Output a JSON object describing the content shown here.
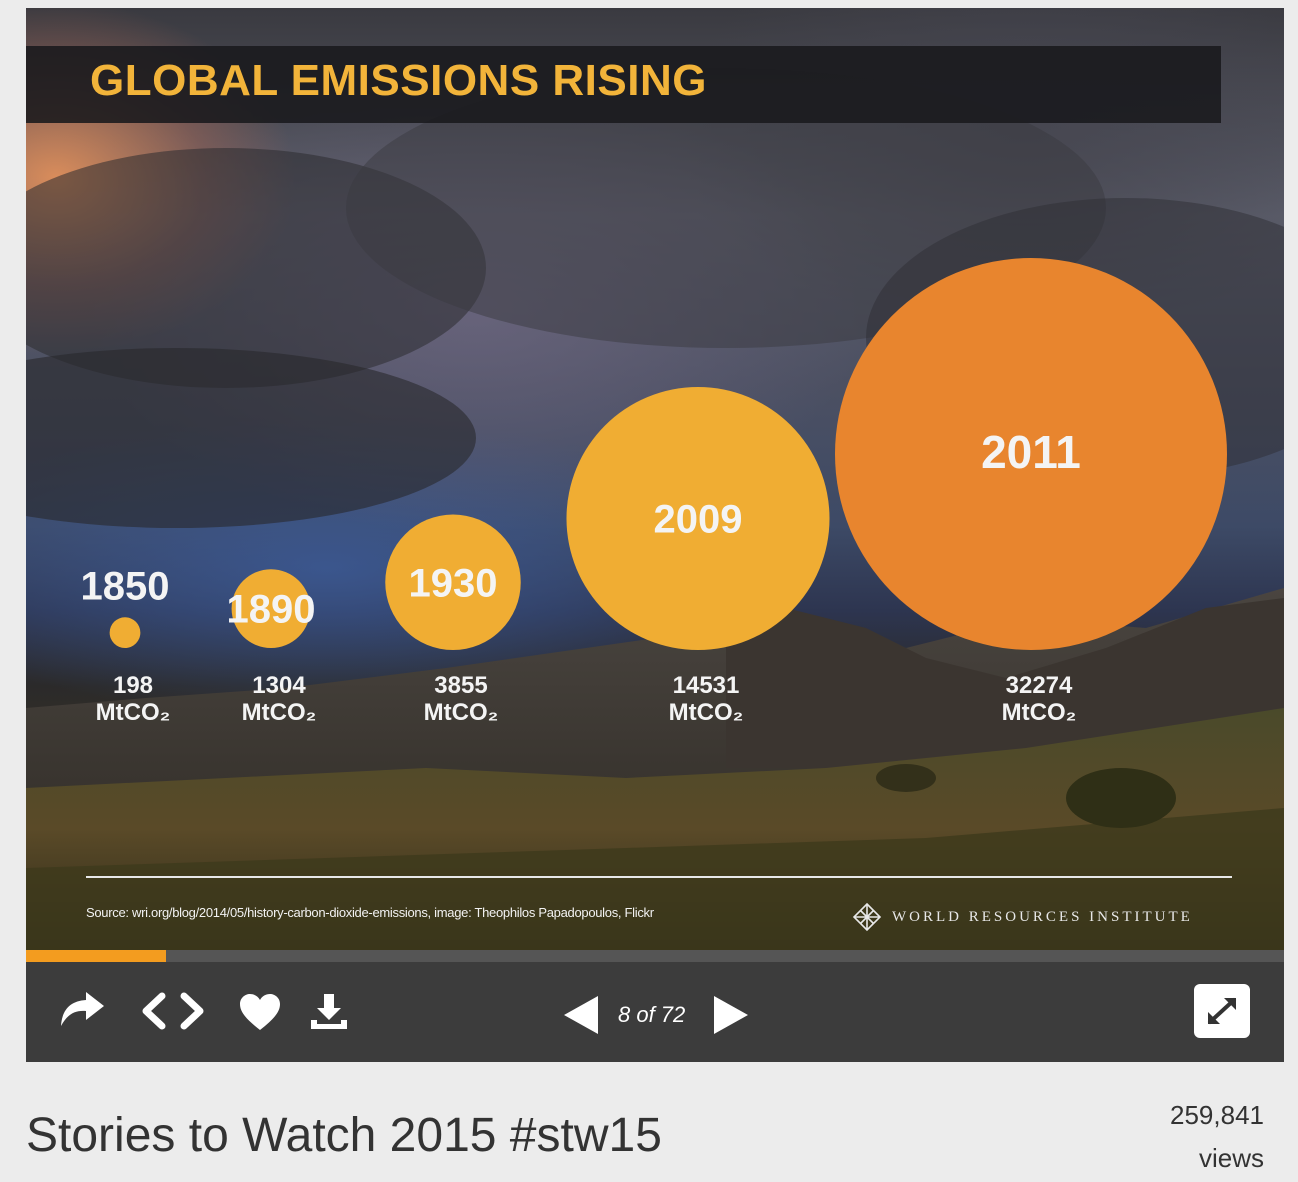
{
  "slide": {
    "title": "GLOBAL EMISSIONS RISING",
    "source": "Source: wri.org/blog/2014/05/history-carbon-dioxide-emissions, image: Theophilos Papadopoulos, Flickr",
    "org": "WORLD RESOURCES INSTITUTE"
  },
  "chart_data": {
    "type": "bubble",
    "title": "GLOBAL EMISSIONS RISING",
    "unit": "MtCO₂",
    "categories": [
      "1850",
      "1890",
      "1930",
      "2009",
      "2011"
    ],
    "values": [
      198,
      1304,
      3855,
      14531,
      32274
    ],
    "value_labels": [
      "198",
      "1304",
      "3855",
      "14531",
      "32274"
    ],
    "unit_label": "MtCO₂",
    "colors": [
      "#f0ad33",
      "#f0ad33",
      "#f0ad33",
      "#f0ad33",
      "#e8852e"
    ]
  },
  "player": {
    "progress": 0.111,
    "counter": "8 of 72",
    "accent": "#f39c1f"
  },
  "icons": [
    "share-icon",
    "embed-icon",
    "heart-icon",
    "download-icon",
    "prev-icon",
    "next-icon",
    "fullscreen-icon"
  ],
  "deck": {
    "title": "Stories to Watch 2015 #stw15",
    "views": "259,841",
    "views_label": "views"
  }
}
